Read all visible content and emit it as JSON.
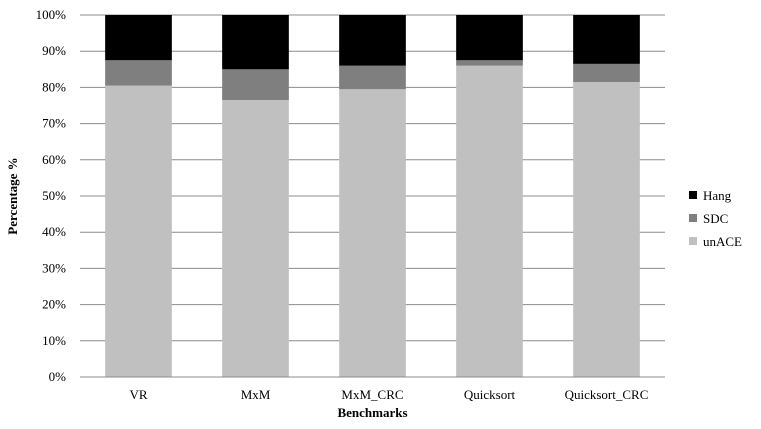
{
  "chart_data": {
    "type": "bar",
    "stacked": true,
    "categories": [
      "VR",
      "MxM",
      "MxM_CRC",
      "Quicksort",
      "Quicksort_CRC"
    ],
    "series": [
      {
        "name": "unACE",
        "values": [
          80.5,
          76.5,
          79.5,
          86.0,
          81.5
        ],
        "color": "#c0c0c0"
      },
      {
        "name": "SDC",
        "values": [
          7.0,
          8.5,
          6.5,
          1.5,
          5.0
        ],
        "color": "#7f7f7f"
      },
      {
        "name": "Hang",
        "values": [
          12.5,
          15.0,
          14.0,
          12.5,
          13.5
        ],
        "color": "#000000"
      }
    ],
    "title": "",
    "xlabel": "Benchmarks",
    "ylabel": "Percentage %",
    "ylim": [
      0,
      100
    ],
    "yticks": [
      "0%",
      "10%",
      "20%",
      "30%",
      "40%",
      "50%",
      "60%",
      "70%",
      "80%",
      "90%",
      "100%"
    ],
    "grid": true,
    "legend": {
      "placement": "right",
      "order": [
        "Hang",
        "SDC",
        "unACE"
      ]
    }
  }
}
